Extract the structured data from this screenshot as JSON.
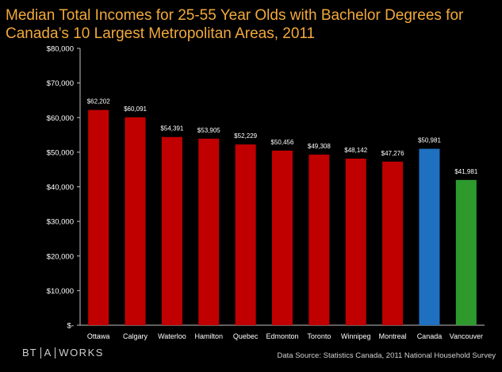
{
  "chart_data": {
    "type": "bar",
    "title": "Median Total Incomes for 25-55 Year Olds with Bachelor Degrees for Canada’s 10 Largest Metropolitan Areas, 2011",
    "title_line1": "Median Total Incomes for 25-55 Year Olds with Bachelor Degrees for",
    "title_line2": "Canada’s 10 Largest Metropolitan Areas, 2011",
    "categories": [
      "Ottawa",
      "Calgary",
      "Waterloo",
      "Hamilton",
      "Quebec",
      "Edmonton",
      "Toronto",
      "Winnipeg",
      "Montreal",
      "Canada",
      "Vancouver"
    ],
    "values": [
      62202,
      60091,
      54391,
      53905,
      52229,
      50456,
      49308,
      48142,
      47276,
      50981,
      41981
    ],
    "value_labels": [
      "$62,202",
      "$60,091",
      "$54,391",
      "$53,905",
      "$52,229",
      "$50,456",
      "$49,308",
      "$48,142",
      "$47,276",
      "$50,981",
      "$41,981"
    ],
    "colors": [
      "#c00000",
      "#c00000",
      "#c00000",
      "#c00000",
      "#c00000",
      "#c00000",
      "#c00000",
      "#c00000",
      "#c00000",
      "#1f70c1",
      "#2e9a2e"
    ],
    "ylim": [
      0,
      80000
    ],
    "yticks": [
      0,
      10000,
      20000,
      30000,
      40000,
      50000,
      60000,
      70000,
      80000
    ],
    "ytick_labels": [
      "$-",
      "$10,000",
      "$20,000",
      "$30,000",
      "$40,000",
      "$50,000",
      "$60,000",
      "$70,000",
      "$80,000"
    ],
    "xlabel": "",
    "ylabel": "",
    "grid": false,
    "legend": false
  },
  "footer": {
    "logo_bt": "BT",
    "logo_a": "A",
    "logo_works": "WORKS",
    "source": "Data Source: Statistics Canada, 2011 National Household Survey"
  },
  "colors": {
    "title": "#f2a93b",
    "background": "#000000",
    "text": "#ffffff"
  }
}
